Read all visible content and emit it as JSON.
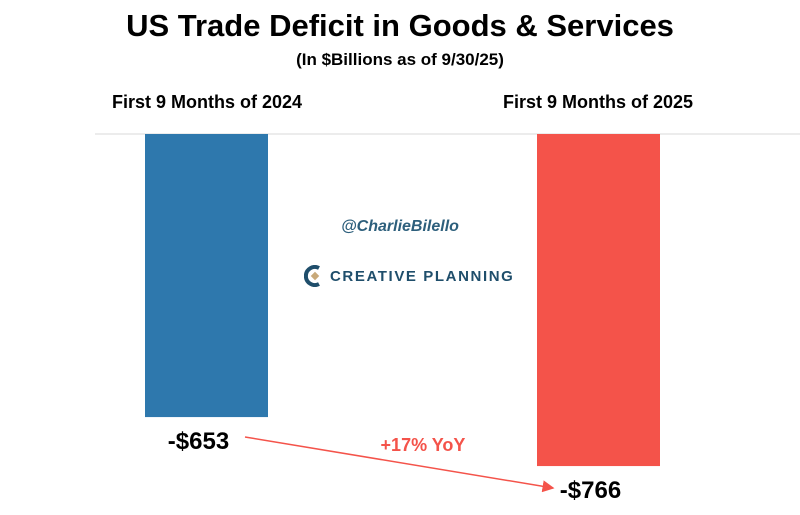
{
  "chart_data": {
    "type": "bar",
    "title": "US Trade Deficit in Goods & Services",
    "subtitle": "(In $Billions as of 9/30/25)",
    "categories": [
      "First 9 Months of 2024",
      "First 9 Months of 2025"
    ],
    "values": [
      -653,
      -766
    ],
    "data_labels": [
      "-$653",
      "-$766"
    ],
    "colors": [
      "#2e78ad",
      "#f4534a"
    ],
    "annotation": "+17% YoY",
    "annotation_color": "#f4534a",
    "grid": false
  },
  "watermark": {
    "handle": "@CharlieBilello",
    "logo": "CREATIVE PLANNING"
  }
}
